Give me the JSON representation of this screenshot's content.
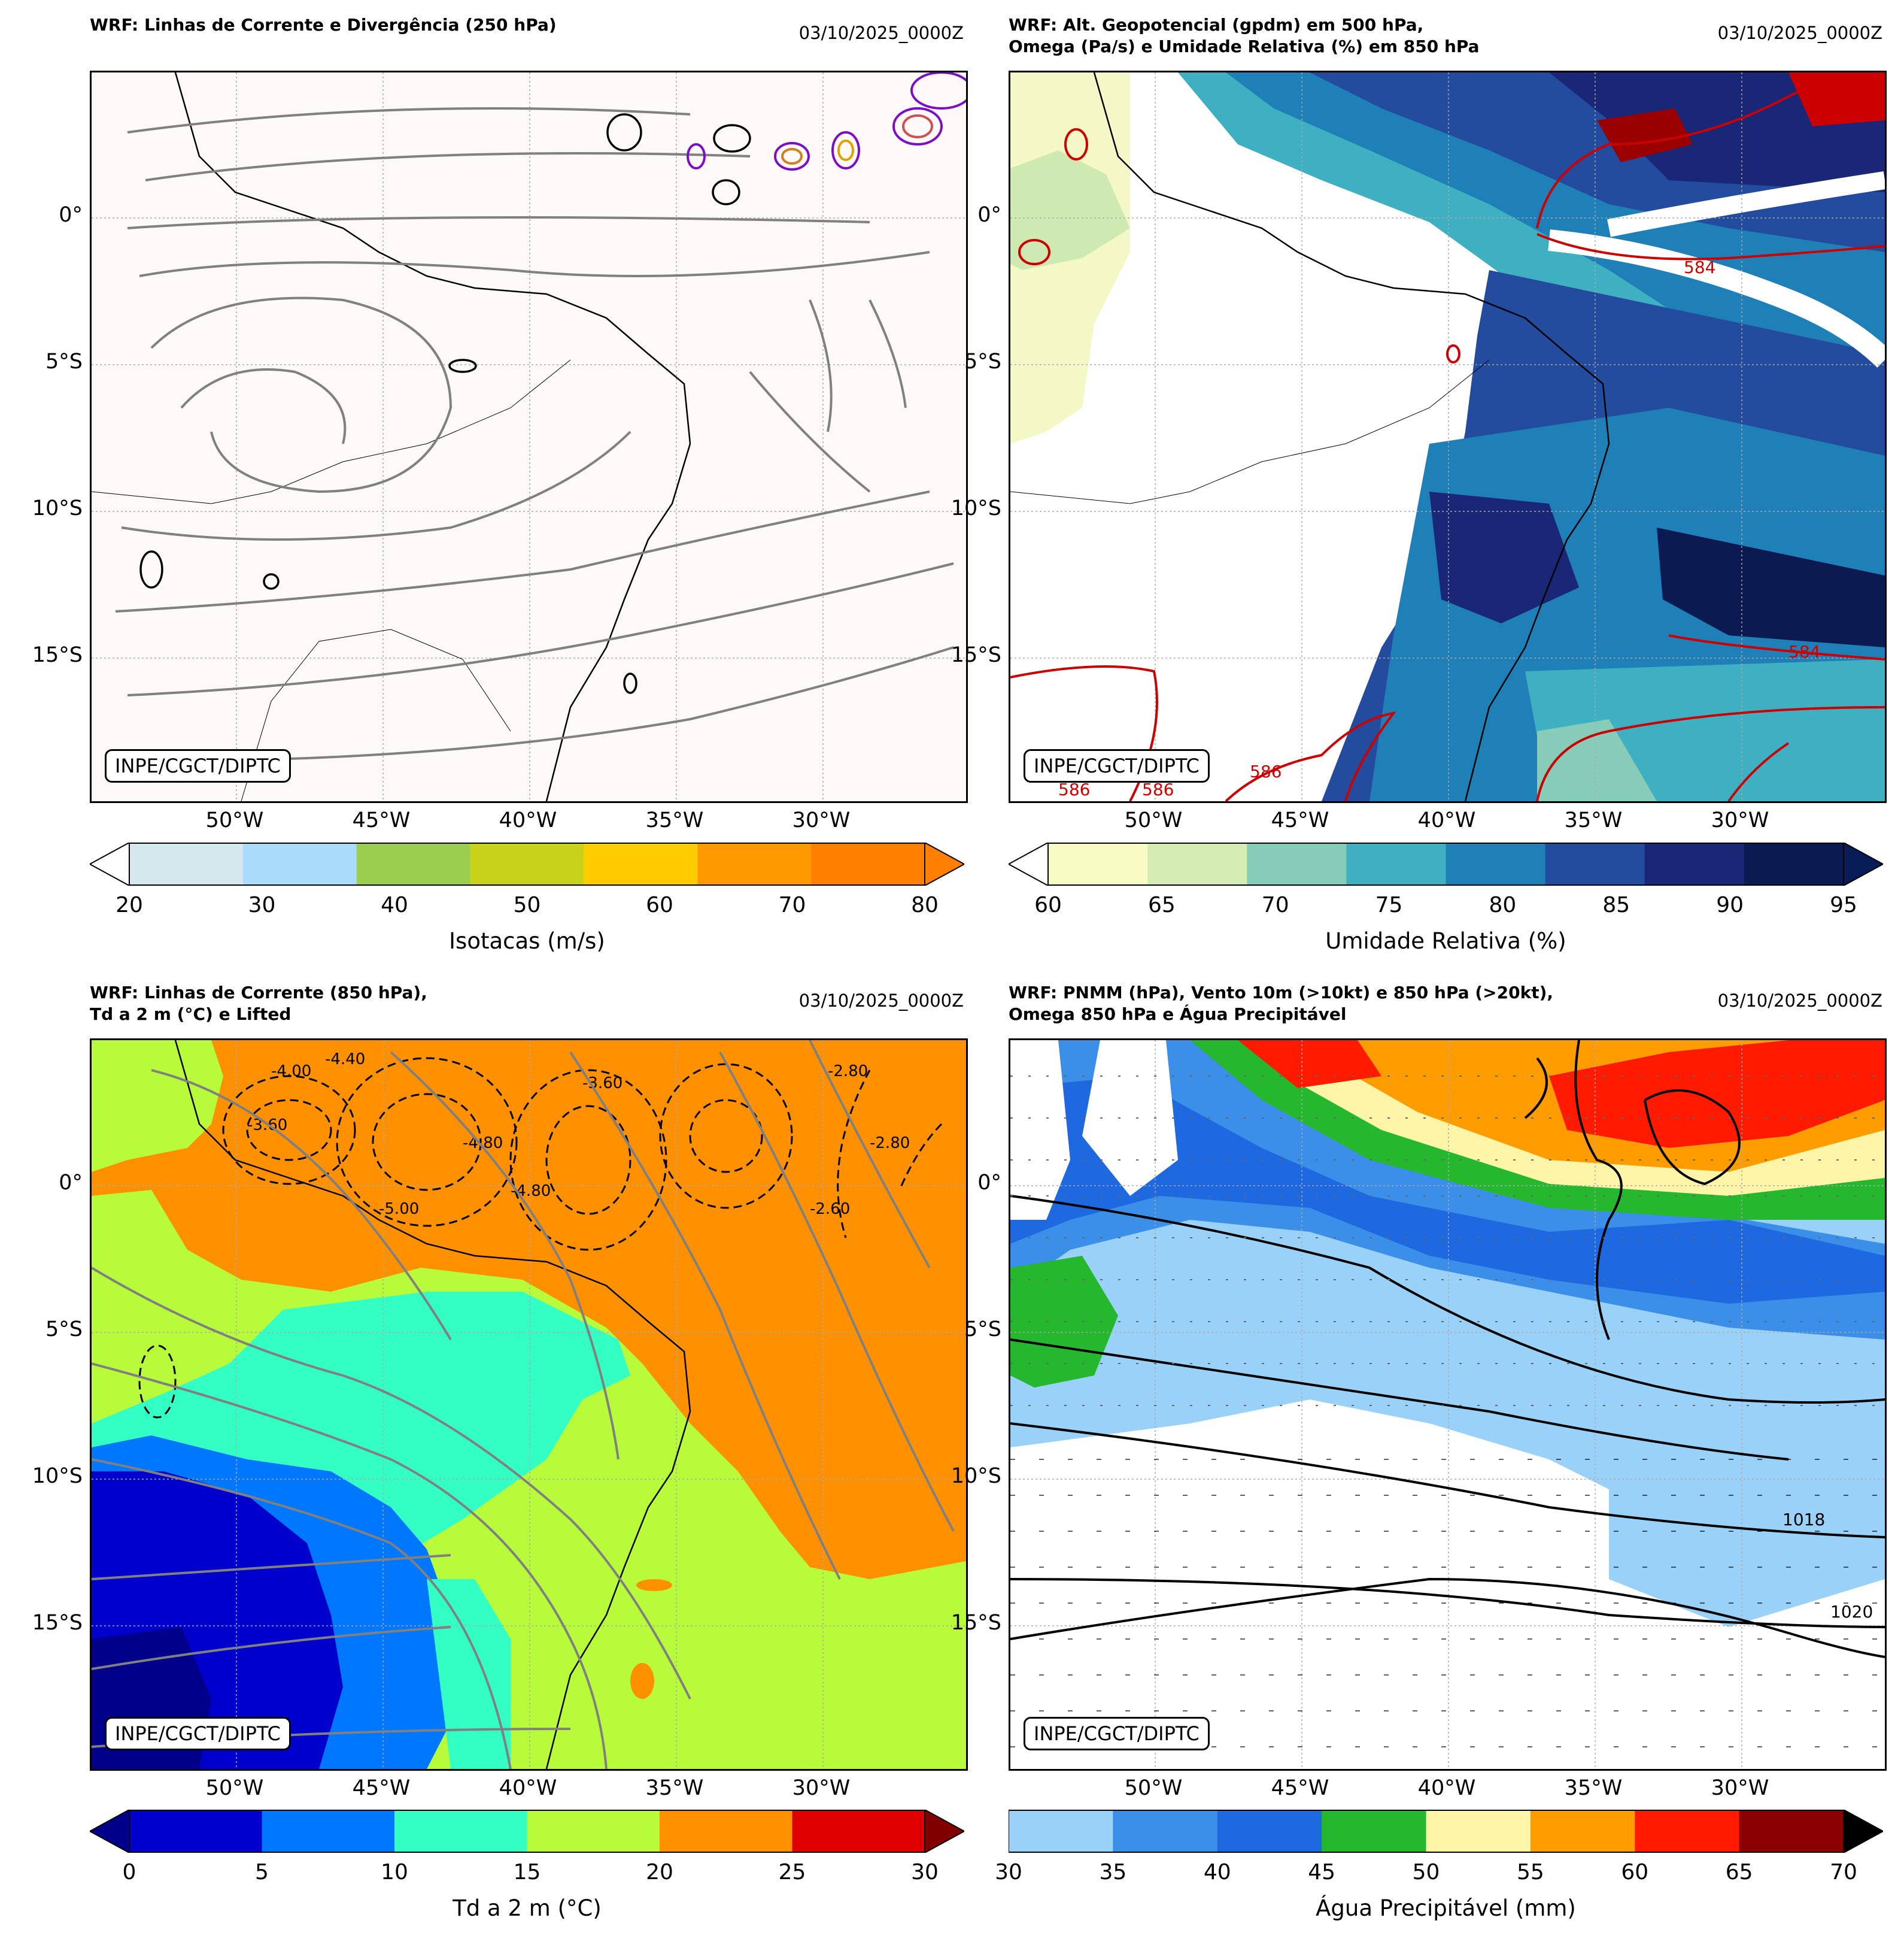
{
  "panels": [
    {
      "id": "streamlines-250",
      "title": "WRF: Linhas de Corrente e Divergência (250 hPa)",
      "date": "03/10/2025_0000Z",
      "credit": "INPE/CGCT/DIPTC",
      "colorbar": {
        "label": "Isotacas (m/s)",
        "ticks": [
          "20",
          "30",
          "40",
          "50",
          "60",
          "70",
          "80"
        ],
        "colors": [
          "#d5e8ee",
          "#a9dcfb",
          "#9bce4f",
          "#c8d21a",
          "#ffcc00",
          "#ff9900",
          "#ff8000"
        ],
        "extend_low": "#ffffff",
        "extend_high": "#ff8000"
      }
    },
    {
      "id": "geopotential-500",
      "title": "WRF: Alt. Geopotencial (gpdm) em 500 hPa,\nOmega (Pa/s) e Umidade Relativa (%) em 850 hPa",
      "date": "03/10/2025_0000Z",
      "credit": "INPE/CGCT/DIPTC",
      "contour_labels": [
        "584",
        "584",
        "586",
        "586",
        "586"
      ],
      "colorbar": {
        "label": "Umidade Relativa (%)",
        "ticks": [
          "60",
          "65",
          "70",
          "75",
          "80",
          "85",
          "90",
          "95"
        ],
        "colors": [
          "#f8fbc4",
          "#d3edb4",
          "#86ccb8",
          "#3fb0c2",
          "#1f80b8",
          "#234b9e",
          "#1a2776",
          "#0c1a52"
        ],
        "extend_low": "#ffffff",
        "extend_high": "#081d58"
      }
    },
    {
      "id": "streamlines-850",
      "title": "WRF: Linhas de Corrente (850 hPa),\nTd a 2 m (°C) e Lifted",
      "date": "03/10/2025_0000Z",
      "credit": "INPE/CGCT/DIPTC",
      "contour_labels": [
        "-4.00",
        "-4.40",
        "-3.60",
        "-3.60",
        "-4.80",
        "-4.80",
        "-5.00",
        "-2.60",
        "-2.80",
        "-2.80"
      ],
      "colorbar": {
        "label": "Td a 2 m (°C)",
        "ticks": [
          "0",
          "5",
          "10",
          "15",
          "20",
          "25",
          "30"
        ],
        "colors": [
          "#0000cd",
          "#0077ff",
          "#33ffc4",
          "#b7fb3a",
          "#ff9000",
          "#e00000"
        ],
        "extend_low": "#00008b",
        "extend_high": "#800000"
      }
    },
    {
      "id": "pnmm",
      "title": "WRF: PNMM (hPa), Vento 10m (>10kt) e 850 hPa (>20kt),\nOmega 850 hPa e Água Precipitável",
      "date": "03/10/2025_0000Z",
      "credit": "INPE/CGCT/DIPTC",
      "contour_labels": [
        "1018",
        "1020"
      ],
      "colorbar": {
        "label": "Água Precipitável (mm)",
        "ticks": [
          "30",
          "35",
          "40",
          "45",
          "50",
          "55",
          "60",
          "65",
          "70"
        ],
        "colors": [
          "#9ad1f8",
          "#3c8fe8",
          "#1e68e0",
          "#25b82e",
          "#fff5a8",
          "#ff9c00",
          "#ff1a00",
          "#8b0000"
        ],
        "extend_low": null,
        "extend_high": "#000000"
      }
    }
  ],
  "axes": {
    "lat_labels": [
      "0°",
      "5°S",
      "10°S",
      "15°S"
    ],
    "lon_labels": [
      "50°W",
      "45°W",
      "40°W",
      "35°W",
      "30°W"
    ]
  }
}
